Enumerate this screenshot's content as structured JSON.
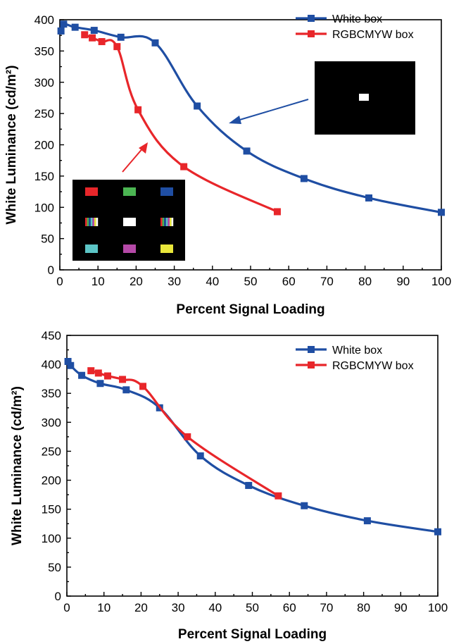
{
  "colors": {
    "white_box": "#1f4ea3",
    "rgb_box": "#e8262a",
    "inset_bg": "#000000"
  },
  "chart_data": [
    {
      "type": "line",
      "title": "",
      "xlabel": "Percent Signal Loading",
      "ylabel": "White Luminance (cd/m²)",
      "xlim": [
        0,
        100
      ],
      "ylim": [
        0,
        400
      ],
      "xticks": [
        0,
        10,
        20,
        30,
        40,
        50,
        60,
        70,
        80,
        90,
        100
      ],
      "yticks": [
        0,
        50,
        100,
        150,
        200,
        250,
        300,
        350,
        400
      ],
      "series": [
        {
          "name": "White box",
          "color": "#1f4ea3",
          "x": [
            0.3,
            1,
            4,
            9,
            16,
            25,
            36,
            49,
            64,
            81,
            100
          ],
          "y": [
            382,
            393,
            388,
            383,
            372,
            363,
            262,
            190,
            146,
            115,
            92
          ]
        },
        {
          "name": "RGBCMYW box",
          "color": "#e8262a",
          "x": [
            6.5,
            8.5,
            11,
            15,
            20.5,
            32.5,
            57
          ],
          "y": [
            376,
            371,
            365,
            357,
            256,
            165,
            93
          ]
        }
      ],
      "legend": "top-right",
      "insets": [
        {
          "name": "White box pattern",
          "cells": [
            "#ffffff"
          ]
        },
        {
          "name": "RGBCMYW box pattern",
          "cells": [
            "#e8262a",
            "#4bb552",
            "#1f4ea3",
            "stripe",
            "#ffffff",
            "stripe",
            "#5cc5c6",
            "#b549a7",
            "#e8e63a"
          ]
        }
      ]
    },
    {
      "type": "line",
      "title": "",
      "xlabel": "Percent Signal Loading",
      "ylabel": "White Luminance (cd/m²)",
      "xlim": [
        0,
        100
      ],
      "ylim": [
        0,
        450
      ],
      "xticks": [
        0,
        10,
        20,
        30,
        40,
        50,
        60,
        70,
        80,
        90,
        100
      ],
      "yticks": [
        0,
        50,
        100,
        150,
        200,
        250,
        300,
        350,
        400,
        450
      ],
      "series": [
        {
          "name": "White box",
          "color": "#1f4ea3",
          "x": [
            0.3,
            1,
            4,
            9,
            16,
            25,
            36,
            49,
            64,
            81,
            100
          ],
          "y": [
            405,
            398,
            381,
            367,
            356,
            325,
            242,
            191,
            156,
            130,
            111
          ]
        },
        {
          "name": "RGBCMYW box",
          "color": "#e8262a",
          "x": [
            6.5,
            8.5,
            11,
            15,
            20.5,
            32.5,
            57
          ],
          "y": [
            389,
            385,
            380,
            374,
            362,
            275,
            173
          ]
        }
      ],
      "legend": "top-right"
    }
  ]
}
